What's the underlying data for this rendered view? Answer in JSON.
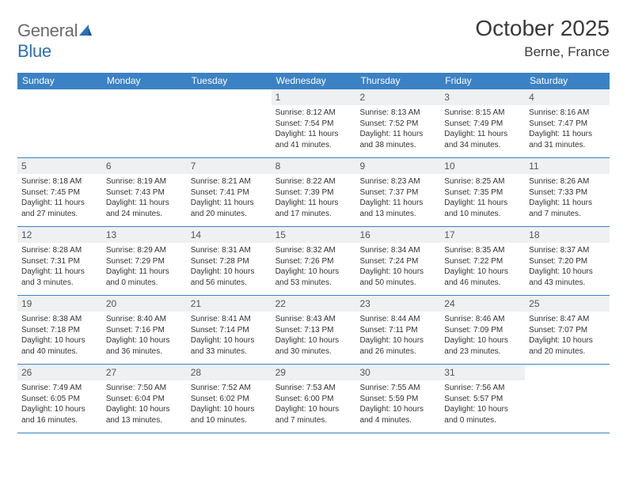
{
  "brand": {
    "part1": "General",
    "part2": "Blue"
  },
  "title": "October 2025",
  "location": "Berne, France",
  "colors": {
    "header_bg": "#3b82c4",
    "header_text": "#ffffff",
    "daynum_bg": "#eef0f1",
    "border": "#3b82c4",
    "brand_gray": "#6a6a6a",
    "brand_blue": "#2a6fb5"
  },
  "day_names": [
    "Sunday",
    "Monday",
    "Tuesday",
    "Wednesday",
    "Thursday",
    "Friday",
    "Saturday"
  ],
  "weeks": [
    [
      null,
      null,
      null,
      {
        "n": "1",
        "sr": "Sunrise: 8:12 AM",
        "ss": "Sunset: 7:54 PM",
        "d1": "Daylight: 11 hours",
        "d2": "and 41 minutes."
      },
      {
        "n": "2",
        "sr": "Sunrise: 8:13 AM",
        "ss": "Sunset: 7:52 PM",
        "d1": "Daylight: 11 hours",
        "d2": "and 38 minutes."
      },
      {
        "n": "3",
        "sr": "Sunrise: 8:15 AM",
        "ss": "Sunset: 7:49 PM",
        "d1": "Daylight: 11 hours",
        "d2": "and 34 minutes."
      },
      {
        "n": "4",
        "sr": "Sunrise: 8:16 AM",
        "ss": "Sunset: 7:47 PM",
        "d1": "Daylight: 11 hours",
        "d2": "and 31 minutes."
      }
    ],
    [
      {
        "n": "5",
        "sr": "Sunrise: 8:18 AM",
        "ss": "Sunset: 7:45 PM",
        "d1": "Daylight: 11 hours",
        "d2": "and 27 minutes."
      },
      {
        "n": "6",
        "sr": "Sunrise: 8:19 AM",
        "ss": "Sunset: 7:43 PM",
        "d1": "Daylight: 11 hours",
        "d2": "and 24 minutes."
      },
      {
        "n": "7",
        "sr": "Sunrise: 8:21 AM",
        "ss": "Sunset: 7:41 PM",
        "d1": "Daylight: 11 hours",
        "d2": "and 20 minutes."
      },
      {
        "n": "8",
        "sr": "Sunrise: 8:22 AM",
        "ss": "Sunset: 7:39 PM",
        "d1": "Daylight: 11 hours",
        "d2": "and 17 minutes."
      },
      {
        "n": "9",
        "sr": "Sunrise: 8:23 AM",
        "ss": "Sunset: 7:37 PM",
        "d1": "Daylight: 11 hours",
        "d2": "and 13 minutes."
      },
      {
        "n": "10",
        "sr": "Sunrise: 8:25 AM",
        "ss": "Sunset: 7:35 PM",
        "d1": "Daylight: 11 hours",
        "d2": "and 10 minutes."
      },
      {
        "n": "11",
        "sr": "Sunrise: 8:26 AM",
        "ss": "Sunset: 7:33 PM",
        "d1": "Daylight: 11 hours",
        "d2": "and 7 minutes."
      }
    ],
    [
      {
        "n": "12",
        "sr": "Sunrise: 8:28 AM",
        "ss": "Sunset: 7:31 PM",
        "d1": "Daylight: 11 hours",
        "d2": "and 3 minutes."
      },
      {
        "n": "13",
        "sr": "Sunrise: 8:29 AM",
        "ss": "Sunset: 7:29 PM",
        "d1": "Daylight: 11 hours",
        "d2": "and 0 minutes."
      },
      {
        "n": "14",
        "sr": "Sunrise: 8:31 AM",
        "ss": "Sunset: 7:28 PM",
        "d1": "Daylight: 10 hours",
        "d2": "and 56 minutes."
      },
      {
        "n": "15",
        "sr": "Sunrise: 8:32 AM",
        "ss": "Sunset: 7:26 PM",
        "d1": "Daylight: 10 hours",
        "d2": "and 53 minutes."
      },
      {
        "n": "16",
        "sr": "Sunrise: 8:34 AM",
        "ss": "Sunset: 7:24 PM",
        "d1": "Daylight: 10 hours",
        "d2": "and 50 minutes."
      },
      {
        "n": "17",
        "sr": "Sunrise: 8:35 AM",
        "ss": "Sunset: 7:22 PM",
        "d1": "Daylight: 10 hours",
        "d2": "and 46 minutes."
      },
      {
        "n": "18",
        "sr": "Sunrise: 8:37 AM",
        "ss": "Sunset: 7:20 PM",
        "d1": "Daylight: 10 hours",
        "d2": "and 43 minutes."
      }
    ],
    [
      {
        "n": "19",
        "sr": "Sunrise: 8:38 AM",
        "ss": "Sunset: 7:18 PM",
        "d1": "Daylight: 10 hours",
        "d2": "and 40 minutes."
      },
      {
        "n": "20",
        "sr": "Sunrise: 8:40 AM",
        "ss": "Sunset: 7:16 PM",
        "d1": "Daylight: 10 hours",
        "d2": "and 36 minutes."
      },
      {
        "n": "21",
        "sr": "Sunrise: 8:41 AM",
        "ss": "Sunset: 7:14 PM",
        "d1": "Daylight: 10 hours",
        "d2": "and 33 minutes."
      },
      {
        "n": "22",
        "sr": "Sunrise: 8:43 AM",
        "ss": "Sunset: 7:13 PM",
        "d1": "Daylight: 10 hours",
        "d2": "and 30 minutes."
      },
      {
        "n": "23",
        "sr": "Sunrise: 8:44 AM",
        "ss": "Sunset: 7:11 PM",
        "d1": "Daylight: 10 hours",
        "d2": "and 26 minutes."
      },
      {
        "n": "24",
        "sr": "Sunrise: 8:46 AM",
        "ss": "Sunset: 7:09 PM",
        "d1": "Daylight: 10 hours",
        "d2": "and 23 minutes."
      },
      {
        "n": "25",
        "sr": "Sunrise: 8:47 AM",
        "ss": "Sunset: 7:07 PM",
        "d1": "Daylight: 10 hours",
        "d2": "and 20 minutes."
      }
    ],
    [
      {
        "n": "26",
        "sr": "Sunrise: 7:49 AM",
        "ss": "Sunset: 6:05 PM",
        "d1": "Daylight: 10 hours",
        "d2": "and 16 minutes."
      },
      {
        "n": "27",
        "sr": "Sunrise: 7:50 AM",
        "ss": "Sunset: 6:04 PM",
        "d1": "Daylight: 10 hours",
        "d2": "and 13 minutes."
      },
      {
        "n": "28",
        "sr": "Sunrise: 7:52 AM",
        "ss": "Sunset: 6:02 PM",
        "d1": "Daylight: 10 hours",
        "d2": "and 10 minutes."
      },
      {
        "n": "29",
        "sr": "Sunrise: 7:53 AM",
        "ss": "Sunset: 6:00 PM",
        "d1": "Daylight: 10 hours",
        "d2": "and 7 minutes."
      },
      {
        "n": "30",
        "sr": "Sunrise: 7:55 AM",
        "ss": "Sunset: 5:59 PM",
        "d1": "Daylight: 10 hours",
        "d2": "and 4 minutes."
      },
      {
        "n": "31",
        "sr": "Sunrise: 7:56 AM",
        "ss": "Sunset: 5:57 PM",
        "d1": "Daylight: 10 hours",
        "d2": "and 0 minutes."
      },
      null
    ]
  ]
}
